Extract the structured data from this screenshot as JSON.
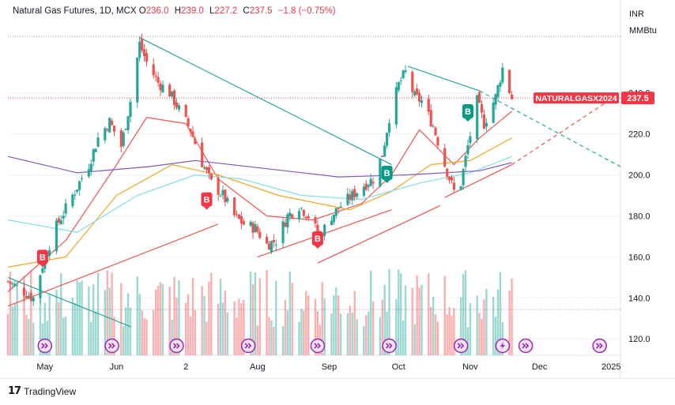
{
  "legend": {
    "symbol": "Natural Gas Futures, 1D, MCX",
    "o_label": "O",
    "o_value": "236.0",
    "h_label": "H",
    "h_value": "239.0",
    "l_label": "L",
    "l_value": "227.2",
    "c_label": "C",
    "c_value": "237.5",
    "change": "−1.8 (−0.75%)"
  },
  "currency": {
    "line1": "INR",
    "line2": "MMBtu"
  },
  "price_tag": {
    "label": "NATURALGASX2024",
    "value": "237.5",
    "color": "#f23645"
  },
  "footer": {
    "brand": "TradingView",
    "logo_text": "17"
  },
  "colors": {
    "up": "#26a69a",
    "down": "#ef5350",
    "ema_fast": "#ef5350",
    "ema_mid": "#f5a623",
    "ema_slow": "#80deea",
    "ema_long": "#7e57c2",
    "trend_teal": "#26a69a",
    "trend_red": "#ef5350",
    "event_icon": "#9c27b0"
  },
  "chart_data": {
    "type": "candlestick",
    "ylim": [
      112,
      273
    ],
    "yticks": [
      120,
      140,
      160,
      180,
      200,
      220,
      240
    ],
    "ytick_labels": [
      "120.0",
      "140.0",
      "160.0",
      "180.0",
      "200.0",
      "220.0",
      "240.0"
    ],
    "x_start": "2024-04-15",
    "x_end": "2025-01-05",
    "x_tick_labels": [
      {
        "date": "2024-05-01",
        "label": "May"
      },
      {
        "date": "2024-06-01",
        "label": "Jun"
      },
      {
        "date": "2024-07-01",
        "label": "2"
      },
      {
        "date": "2024-08-01",
        "label": "Aug"
      },
      {
        "date": "2024-09-01",
        "label": "Sep"
      },
      {
        "date": "2024-10-01",
        "label": "Oct"
      },
      {
        "date": "2024-11-01",
        "label": "Nov"
      },
      {
        "date": "2024-12-01",
        "label": "Dec"
      },
      {
        "date": "2025-01-01",
        "label": "2025"
      }
    ],
    "close_path": [
      [
        "2024-04-15",
        148
      ],
      [
        "2024-04-22",
        143
      ],
      [
        "2024-04-26",
        140
      ],
      [
        "2024-05-01",
        160
      ],
      [
        "2024-05-06",
        175
      ],
      [
        "2024-05-13",
        190
      ],
      [
        "2024-05-20",
        205
      ],
      [
        "2024-05-24",
        218
      ],
      [
        "2024-05-29",
        226
      ],
      [
        "2024-06-03",
        214
      ],
      [
        "2024-06-07",
        236
      ],
      [
        "2024-06-11",
        264
      ],
      [
        "2024-06-14",
        255
      ],
      [
        "2024-06-19",
        245
      ],
      [
        "2024-06-24",
        240
      ],
      [
        "2024-06-28",
        232
      ],
      [
        "2024-07-03",
        222
      ],
      [
        "2024-07-08",
        206
      ],
      [
        "2024-07-12",
        196
      ],
      [
        "2024-07-17",
        190
      ],
      [
        "2024-07-22",
        180
      ],
      [
        "2024-07-26",
        176
      ],
      [
        "2024-07-31",
        174
      ],
      [
        "2024-08-05",
        166
      ],
      [
        "2024-08-09",
        168
      ],
      [
        "2024-08-14",
        180
      ],
      [
        "2024-08-19",
        185
      ],
      [
        "2024-08-23",
        180
      ],
      [
        "2024-08-28",
        170
      ],
      [
        "2024-09-02",
        180
      ],
      [
        "2024-09-06",
        185
      ],
      [
        "2024-09-11",
        190
      ],
      [
        "2024-09-16",
        195
      ],
      [
        "2024-09-20",
        198
      ],
      [
        "2024-09-24",
        210
      ],
      [
        "2024-09-27",
        228
      ],
      [
        "2024-10-01",
        244
      ],
      [
        "2024-10-04",
        250
      ],
      [
        "2024-10-08",
        238
      ],
      [
        "2024-10-11",
        236
      ],
      [
        "2024-10-16",
        224
      ],
      [
        "2024-10-21",
        205
      ],
      [
        "2024-10-25",
        192
      ],
      [
        "2024-10-28",
        196
      ],
      [
        "2024-10-31",
        214
      ],
      [
        "2024-11-04",
        236
      ],
      [
        "2024-11-07",
        225
      ],
      [
        "2024-11-12",
        238
      ],
      [
        "2024-11-15",
        252
      ],
      [
        "2024-11-19",
        237.5
      ]
    ],
    "series": [
      {
        "name": "EMA fast",
        "color": "#ef5350",
        "points": [
          [
            "2024-04-15",
            143
          ],
          [
            "2024-05-10",
            168
          ],
          [
            "2024-06-01",
            205
          ],
          [
            "2024-06-14",
            228
          ],
          [
            "2024-07-01",
            225
          ],
          [
            "2024-07-15",
            198
          ],
          [
            "2024-08-05",
            180
          ],
          [
            "2024-08-25",
            178
          ],
          [
            "2024-09-15",
            186
          ],
          [
            "2024-09-28",
            200
          ],
          [
            "2024-10-10",
            222
          ],
          [
            "2024-10-25",
            205
          ],
          [
            "2024-11-05",
            218
          ],
          [
            "2024-11-19",
            231
          ]
        ]
      },
      {
        "name": "EMA mid",
        "color": "#f5a623",
        "points": [
          [
            "2024-04-15",
            155
          ],
          [
            "2024-05-10",
            160
          ],
          [
            "2024-06-01",
            190
          ],
          [
            "2024-06-25",
            205
          ],
          [
            "2024-07-15",
            200
          ],
          [
            "2024-08-10",
            190
          ],
          [
            "2024-09-10",
            183
          ],
          [
            "2024-09-28",
            192
          ],
          [
            "2024-10-15",
            205
          ],
          [
            "2024-11-01",
            207
          ],
          [
            "2024-11-19",
            218
          ]
        ]
      },
      {
        "name": "EMA slow",
        "color": "#80deea",
        "points": [
          [
            "2024-04-15",
            178
          ],
          [
            "2024-05-15",
            172
          ],
          [
            "2024-06-10",
            190
          ],
          [
            "2024-07-05",
            200
          ],
          [
            "2024-07-25",
            198
          ],
          [
            "2024-08-20",
            190
          ],
          [
            "2024-09-15",
            188
          ],
          [
            "2024-10-10",
            196
          ],
          [
            "2024-11-01",
            201
          ],
          [
            "2024-11-19",
            209
          ]
        ]
      },
      {
        "name": "EMA long",
        "color": "#7e57c2",
        "points": [
          [
            "2024-04-15",
            209
          ],
          [
            "2024-05-15",
            201
          ],
          [
            "2024-06-15",
            204
          ],
          [
            "2024-07-05",
            207
          ],
          [
            "2024-08-05",
            203
          ],
          [
            "2024-09-05",
            199
          ],
          [
            "2024-10-05",
            200
          ],
          [
            "2024-11-05",
            202
          ],
          [
            "2024-11-19",
            206
          ]
        ]
      }
    ],
    "trendlines": [
      {
        "color": "#26a69a",
        "dashed": false,
        "points": [
          [
            "2024-04-15",
            150
          ],
          [
            "2024-06-07",
            126
          ]
        ]
      },
      {
        "color": "#26a69a",
        "dashed": false,
        "points": [
          [
            "2024-06-11",
            267
          ],
          [
            "2024-09-28",
            205
          ]
        ]
      },
      {
        "color": "#26a69a",
        "dashed": false,
        "points": [
          [
            "2024-10-05",
            253
          ],
          [
            "2024-11-05",
            241
          ]
        ]
      },
      {
        "color": "#26a69a",
        "dashed": true,
        "points": [
          [
            "2024-11-05",
            241
          ],
          [
            "2025-01-05",
            204
          ]
        ]
      },
      {
        "color": "#ef5350",
        "dashed": false,
        "points": [
          [
            "2024-04-15",
            136
          ],
          [
            "2024-07-15",
            176
          ]
        ]
      },
      {
        "color": "#ef5350",
        "dashed": false,
        "points": [
          [
            "2024-08-01",
            160
          ],
          [
            "2024-09-28",
            183
          ]
        ]
      },
      {
        "color": "#ef5350",
        "dashed": false,
        "points": [
          [
            "2024-08-27",
            157
          ],
          [
            "2024-10-19",
            185
          ]
        ]
      },
      {
        "color": "#ef5350",
        "dashed": false,
        "points": [
          [
            "2024-10-21",
            189
          ],
          [
            "2024-11-19",
            205
          ]
        ]
      },
      {
        "color": "#ef5350",
        "dashed": true,
        "points": [
          [
            "2024-11-19",
            205
          ],
          [
            "2025-01-01",
            237
          ]
        ]
      }
    ],
    "signals": [
      {
        "date": "2024-04-30",
        "price": 160,
        "label": "B",
        "color": "#f23645"
      },
      {
        "date": "2024-07-10",
        "price": 188,
        "label": "B",
        "color": "#f23645"
      },
      {
        "date": "2024-08-27",
        "price": 169,
        "label": "B",
        "color": "#f23645"
      },
      {
        "date": "2024-09-26",
        "price": 201,
        "label": "B",
        "color": "#089981"
      },
      {
        "date": "2024-10-31",
        "price": 231,
        "label": "B",
        "color": "#089981"
      }
    ],
    "events": [
      {
        "date": "2024-05-01",
        "kind": "forward"
      },
      {
        "date": "2024-05-30",
        "kind": "forward"
      },
      {
        "date": "2024-06-27",
        "kind": "forward"
      },
      {
        "date": "2024-07-28",
        "kind": "forward"
      },
      {
        "date": "2024-08-27",
        "kind": "forward"
      },
      {
        "date": "2024-09-27",
        "kind": "forward"
      },
      {
        "date": "2024-10-28",
        "kind": "forward"
      },
      {
        "date": "2024-11-15",
        "kind": "lightning"
      },
      {
        "date": "2024-11-25",
        "kind": "forward"
      },
      {
        "date": "2024-12-27",
        "kind": "forward"
      }
    ],
    "last_price": 237.5,
    "last_date": "2024-11-19"
  }
}
